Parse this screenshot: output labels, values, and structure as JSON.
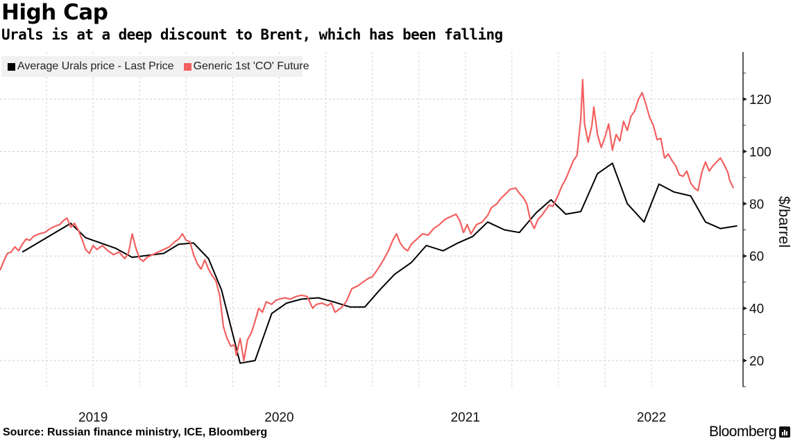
{
  "chart_data": {
    "type": "line",
    "title": "High Cap",
    "subtitle": "Urals is at a deep discount to Brent, which has been falling",
    "xlabel": "",
    "ylabel": "$/barrel",
    "xlim": [
      2019.0,
      2022.58
    ],
    "ylim": [
      10,
      138
    ],
    "y_ticks": [
      20,
      40,
      60,
      80,
      100,
      120
    ],
    "x_ticks": [
      {
        "label": "2019",
        "x": 2019.5
      },
      {
        "label": "2020",
        "x": 2020.5
      },
      {
        "label": "2021",
        "x": 2021.5
      },
      {
        "label": "2022",
        "x": 2022.5
      }
    ],
    "grid": true,
    "legend_position": "top-left",
    "source": "Source: Russian finance ministry, ICE, Bloomberg",
    "brand": "Bloomberg",
    "series": [
      {
        "name": "Average Urals price - Last Price",
        "color": "#000000",
        "points": [
          [
            2019.12,
            61.5
          ],
          [
            2019.38,
            72.5
          ],
          [
            2019.46,
            67.0
          ],
          [
            2019.62,
            63.0
          ],
          [
            2019.71,
            59.5
          ],
          [
            2019.88,
            61.0
          ],
          [
            2019.96,
            64.5
          ],
          [
            2020.04,
            65.0
          ],
          [
            2020.12,
            59.0
          ],
          [
            2020.19,
            47.0
          ],
          [
            2020.29,
            19.0
          ],
          [
            2020.37,
            20.0
          ],
          [
            2020.46,
            38.0
          ],
          [
            2020.54,
            42.0
          ],
          [
            2020.62,
            43.5
          ],
          [
            2020.71,
            44.0
          ],
          [
            2020.79,
            42.5
          ],
          [
            2020.88,
            40.5
          ],
          [
            2020.96,
            40.5
          ],
          [
            2021.04,
            47.0
          ],
          [
            2021.12,
            53.0
          ],
          [
            2021.21,
            57.5
          ],
          [
            2021.29,
            64.0
          ],
          [
            2021.38,
            62.0
          ],
          [
            2021.46,
            65.0
          ],
          [
            2021.54,
            67.5
          ],
          [
            2021.62,
            73.0
          ],
          [
            2021.71,
            70.0
          ],
          [
            2021.79,
            69.0
          ],
          [
            2021.88,
            76.5
          ],
          [
            2021.96,
            81.5
          ],
          [
            2022.04,
            76.0
          ],
          [
            2022.12,
            77.0
          ],
          [
            2022.21,
            91.5
          ],
          [
            2022.29,
            95.5
          ],
          [
            2022.37,
            80.0
          ],
          [
            2022.46,
            73.0
          ],
          [
            2022.54,
            87.5
          ],
          [
            2022.62,
            84.5
          ],
          [
            2022.71,
            83.0
          ],
          [
            2022.79,
            73.0
          ],
          [
            2022.87,
            70.5
          ],
          [
            2022.96,
            71.5
          ]
        ]
      },
      {
        "name": "Generic 1st 'CO' Future",
        "color": "#f26060",
        "points": [
          [
            2019.0,
            54.5
          ],
          [
            2019.02,
            58.0
          ],
          [
            2019.04,
            61.0
          ],
          [
            2019.06,
            61.5
          ],
          [
            2019.08,
            63.5
          ],
          [
            2019.1,
            62.0
          ],
          [
            2019.12,
            64.5
          ],
          [
            2019.14,
            66.5
          ],
          [
            2019.16,
            66.0
          ],
          [
            2019.18,
            67.5
          ],
          [
            2019.21,
            68.5
          ],
          [
            2019.24,
            69.0
          ],
          [
            2019.27,
            70.5
          ],
          [
            2019.3,
            71.5
          ],
          [
            2019.32,
            72.0
          ],
          [
            2019.34,
            73.5
          ],
          [
            2019.36,
            74.5
          ],
          [
            2019.38,
            71.0
          ],
          [
            2019.4,
            72.5
          ],
          [
            2019.42,
            70.0
          ],
          [
            2019.44,
            66.5
          ],
          [
            2019.46,
            62.5
          ],
          [
            2019.48,
            61.0
          ],
          [
            2019.5,
            64.0
          ],
          [
            2019.52,
            62.5
          ],
          [
            2019.55,
            64.0
          ],
          [
            2019.58,
            62.0
          ],
          [
            2019.61,
            60.5
          ],
          [
            2019.64,
            61.5
          ],
          [
            2019.67,
            59.0
          ],
          [
            2019.69,
            61.0
          ],
          [
            2019.71,
            68.5
          ],
          [
            2019.73,
            63.0
          ],
          [
            2019.75,
            59.0
          ],
          [
            2019.77,
            58.0
          ],
          [
            2019.79,
            59.5
          ],
          [
            2019.82,
            60.5
          ],
          [
            2019.85,
            61.5
          ],
          [
            2019.88,
            62.5
          ],
          [
            2019.91,
            63.5
          ],
          [
            2019.94,
            65.5
          ],
          [
            2019.96,
            66.5
          ],
          [
            2019.98,
            68.5
          ],
          [
            2020.0,
            66.0
          ],
          [
            2020.02,
            65.5
          ],
          [
            2020.04,
            60.5
          ],
          [
            2020.06,
            57.0
          ],
          [
            2020.08,
            55.0
          ],
          [
            2020.1,
            58.5
          ],
          [
            2020.12,
            55.0
          ],
          [
            2020.14,
            52.5
          ],
          [
            2020.16,
            50.5
          ],
          [
            2020.18,
            45.0
          ],
          [
            2020.2,
            33.0
          ],
          [
            2020.22,
            28.5
          ],
          [
            2020.24,
            25.5
          ],
          [
            2020.26,
            26.0
          ],
          [
            2020.27,
            22.0
          ],
          [
            2020.29,
            28.5
          ],
          [
            2020.31,
            20.0
          ],
          [
            2020.33,
            28.0
          ],
          [
            2020.35,
            30.5
          ],
          [
            2020.37,
            35.0
          ],
          [
            2020.39,
            40.0
          ],
          [
            2020.41,
            38.5
          ],
          [
            2020.43,
            42.5
          ],
          [
            2020.46,
            41.5
          ],
          [
            2020.48,
            43.0
          ],
          [
            2020.5,
            43.5
          ],
          [
            2020.53,
            44.0
          ],
          [
            2020.56,
            43.5
          ],
          [
            2020.59,
            44.5
          ],
          [
            2020.62,
            45.0
          ],
          [
            2020.65,
            44.5
          ],
          [
            2020.68,
            40.0
          ],
          [
            2020.7,
            41.5
          ],
          [
            2020.73,
            42.0
          ],
          [
            2020.76,
            41.0
          ],
          [
            2020.78,
            42.0
          ],
          [
            2020.8,
            38.5
          ],
          [
            2020.83,
            40.0
          ],
          [
            2020.86,
            42.5
          ],
          [
            2020.89,
            47.5
          ],
          [
            2020.92,
            48.5
          ],
          [
            2020.95,
            50.0
          ],
          [
            2020.98,
            51.5
          ],
          [
            2021.0,
            52.0
          ],
          [
            2021.03,
            55.0
          ],
          [
            2021.06,
            58.5
          ],
          [
            2021.09,
            62.5
          ],
          [
            2021.11,
            66.0
          ],
          [
            2021.13,
            68.5
          ],
          [
            2021.15,
            65.0
          ],
          [
            2021.17,
            63.0
          ],
          [
            2021.19,
            62.0
          ],
          [
            2021.21,
            64.5
          ],
          [
            2021.24,
            66.5
          ],
          [
            2021.27,
            68.5
          ],
          [
            2021.3,
            68.0
          ],
          [
            2021.33,
            70.5
          ],
          [
            2021.36,
            72.0
          ],
          [
            2021.39,
            74.0
          ],
          [
            2021.42,
            75.0
          ],
          [
            2021.45,
            76.0
          ],
          [
            2021.47,
            73.5
          ],
          [
            2021.49,
            69.0
          ],
          [
            2021.51,
            72.0
          ],
          [
            2021.53,
            68.5
          ],
          [
            2021.56,
            72.0
          ],
          [
            2021.59,
            73.0
          ],
          [
            2021.62,
            75.5
          ],
          [
            2021.64,
            78.5
          ],
          [
            2021.67,
            80.0
          ],
          [
            2021.69,
            82.0
          ],
          [
            2021.72,
            84.0
          ],
          [
            2021.74,
            85.5
          ],
          [
            2021.77,
            86.0
          ],
          [
            2021.79,
            84.0
          ],
          [
            2021.81,
            82.5
          ],
          [
            2021.83,
            80.0
          ],
          [
            2021.85,
            73.5
          ],
          [
            2021.87,
            70.5
          ],
          [
            2021.89,
            74.0
          ],
          [
            2021.91,
            75.5
          ],
          [
            2021.93,
            77.5
          ],
          [
            2021.95,
            79.5
          ],
          [
            2021.97,
            79.0
          ],
          [
            2022.0,
            83.5
          ],
          [
            2022.02,
            87.0
          ],
          [
            2022.04,
            89.5
          ],
          [
            2022.06,
            93.0
          ],
          [
            2022.08,
            96.5
          ],
          [
            2022.1,
            98.5
          ],
          [
            2022.12,
            112.5
          ],
          [
            2022.13,
            127.5
          ],
          [
            2022.14,
            110.5
          ],
          [
            2022.16,
            103.5
          ],
          [
            2022.18,
            110.0
          ],
          [
            2022.19,
            117.0
          ],
          [
            2022.21,
            106.5
          ],
          [
            2022.23,
            101.5
          ],
          [
            2022.25,
            105.5
          ],
          [
            2022.27,
            110.5
          ],
          [
            2022.29,
            100.5
          ],
          [
            2022.31,
            106.5
          ],
          [
            2022.33,
            104.0
          ],
          [
            2022.35,
            111.5
          ],
          [
            2022.37,
            108.0
          ],
          [
            2022.39,
            113.5
          ],
          [
            2022.41,
            115.5
          ],
          [
            2022.43,
            120.0
          ],
          [
            2022.45,
            122.5
          ],
          [
            2022.47,
            118.0
          ],
          [
            2022.49,
            113.0
          ],
          [
            2022.51,
            110.0
          ],
          [
            2022.53,
            104.5
          ],
          [
            2022.55,
            105.0
          ],
          [
            2022.57,
            97.5
          ],
          [
            2022.59,
            99.0
          ],
          [
            2022.61,
            96.5
          ],
          [
            2022.63,
            94.5
          ],
          [
            2022.65,
            91.0
          ],
          [
            2022.67,
            90.5
          ],
          [
            2022.69,
            92.5
          ],
          [
            2022.71,
            88.0
          ],
          [
            2022.73,
            86.0
          ],
          [
            2022.75,
            85.0
          ],
          [
            2022.77,
            92.0
          ],
          [
            2022.79,
            96.0
          ],
          [
            2022.81,
            92.5
          ],
          [
            2022.83,
            94.5
          ],
          [
            2022.85,
            96.0
          ],
          [
            2022.87,
            97.5
          ],
          [
            2022.89,
            95.0
          ],
          [
            2022.91,
            92.0
          ],
          [
            2022.92,
            89.0
          ],
          [
            2022.94,
            86.0
          ]
        ]
      }
    ]
  },
  "legend": {
    "items": [
      {
        "label": "Average Urals price - Last Price",
        "color": "#000000"
      },
      {
        "label": "Generic 1st 'CO' Future",
        "color": "#f26060"
      }
    ]
  },
  "footer": {
    "source": "Source: Russian finance ministry, ICE, Bloomberg",
    "brand": "Bloomberg"
  }
}
